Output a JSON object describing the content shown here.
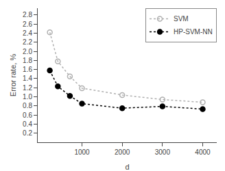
{
  "chart_data": {
    "type": "line",
    "x_label": "d",
    "y_label": "Error rate, %",
    "series": [
      {
        "name": "SVM",
        "color": "#b0b0b0",
        "marker": "open circle",
        "line_style": "dotted",
        "x": [
          200,
          400,
          700,
          1000,
          2000,
          3000,
          4000
        ],
        "values": [
          2.42,
          1.78,
          1.45,
          1.19,
          1.04,
          0.94,
          0.88
        ]
      },
      {
        "name": "HP-SVM-NN",
        "color": "#000000",
        "marker": "circle",
        "line_style": "dotted",
        "x": [
          200,
          400,
          700,
          1000,
          2000,
          3000,
          4000
        ],
        "values": [
          1.58,
          1.23,
          1.02,
          0.85,
          0.75,
          0.79,
          0.73
        ]
      }
    ],
    "xlim": [
      -100,
      4350
    ],
    "ylim": [
      0,
      2.95
    ],
    "xticks": [
      1000,
      2000,
      3000,
      4000
    ],
    "yticks": [
      0.2,
      0.4,
      0.6,
      0.8,
      {
        "value": 1.0,
        "label": "1.0"
      },
      1.2,
      1.4,
      1.6,
      1.8,
      {
        "value": 2.0,
        "label": "2.0"
      },
      2.2,
      2.4,
      2.6,
      2.8
    ],
    "grid": false,
    "legend": "upper right"
  }
}
